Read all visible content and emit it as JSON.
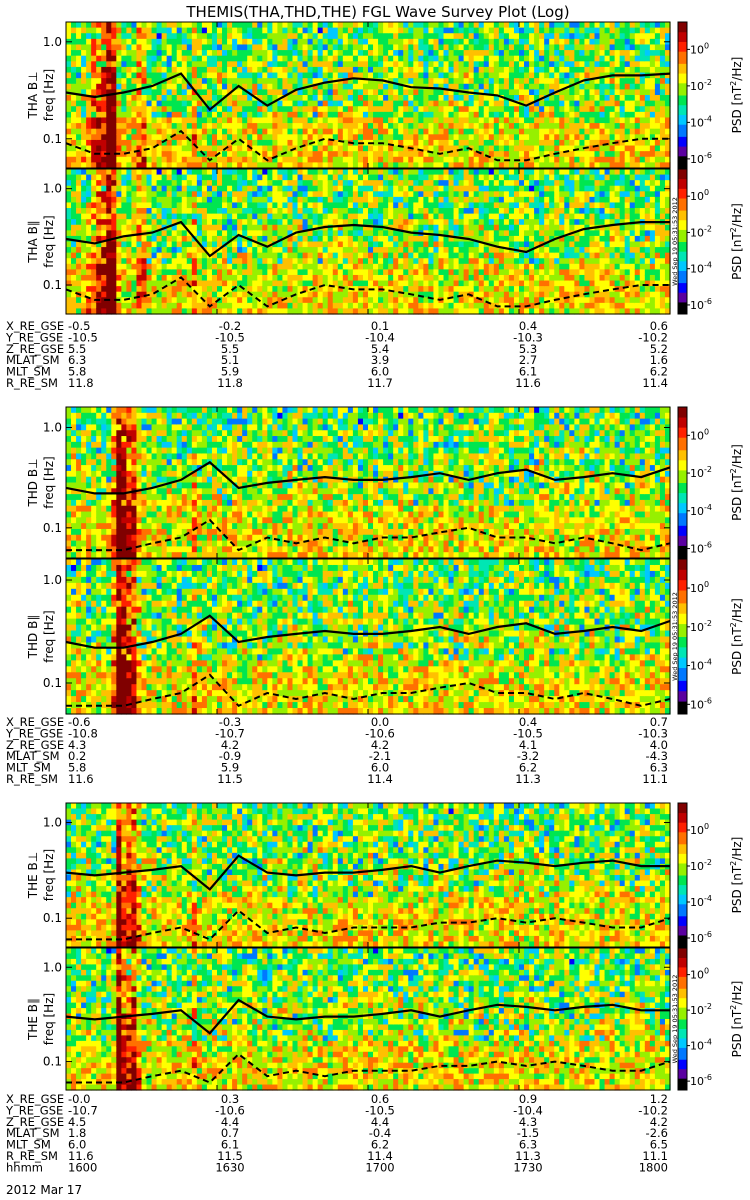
{
  "title": "THEMIS(THA,THD,THE) FGL Wave Survey Plot (Log)",
  "colorbar": {
    "label": "PSD [nT²/Hz]",
    "label_plain": "PSD [nT",
    "label_sup": "2",
    "label_tail": "/Hz]",
    "tick_base": "10",
    "tick_exponents": [
      "0",
      "-2",
      "-4",
      "-6"
    ],
    "colors": [
      "#000000",
      "#5a00a0",
      "#0000ff",
      "#0078ff",
      "#00c8ff",
      "#00e6b4",
      "#00e650",
      "#96f000",
      "#ffff00",
      "#ffc000",
      "#ff7000",
      "#ff2000",
      "#c00000",
      "#800000"
    ]
  },
  "timestamp_text": "Wed Sep 19 05:31:53 2012",
  "ylabel": "freq [Hz]",
  "yticks": [
    "1.0",
    "0.1"
  ],
  "chart_data": [
    {
      "type": "heatmap",
      "probe": "THA",
      "panel_label": "THA B⊥",
      "ylabel": "freq [Hz]",
      "yscale": "log",
      "ylim": [
        0.05,
        1.6
      ],
      "zlim_log10": [
        -6.5,
        1.5
      ],
      "bands": [
        {
          "t": 16.15,
          "w": 0.012,
          "amp": 4.5
        },
        {
          "t": 16.12,
          "w": 0.04,
          "amp": 2.0
        },
        {
          "t": 16.25,
          "w": 0.01,
          "amp": 2.3
        },
        {
          "t": 16.42,
          "w": 0.006,
          "amp": 1.7
        }
      ],
      "solid_fc": [
        0.3,
        0.27,
        0.3,
        0.35,
        0.47,
        0.2,
        0.35,
        0.22,
        0.32,
        0.38,
        0.42,
        0.4,
        0.34,
        0.33,
        0.3,
        0.28,
        0.22,
        0.3,
        0.4,
        0.45,
        0.45,
        0.47
      ],
      "dashed_fc": [
        0.09,
        0.07,
        0.07,
        0.08,
        0.12,
        0.06,
        0.1,
        0.06,
        0.08,
        0.1,
        0.09,
        0.09,
        0.08,
        0.07,
        0.08,
        0.06,
        0.06,
        0.07,
        0.08,
        0.09,
        0.1,
        0.1
      ]
    },
    {
      "type": "heatmap",
      "probe": "THA",
      "panel_label": "THA B∥",
      "ylabel": "freq [Hz]",
      "yscale": "log",
      "ylim": [
        0.05,
        1.6
      ],
      "zlim_log10": [
        -6.5,
        1.5
      ],
      "bands": [
        {
          "t": 16.15,
          "w": 0.012,
          "amp": 4.5
        },
        {
          "t": 16.12,
          "w": 0.04,
          "amp": 2.0
        },
        {
          "t": 16.25,
          "w": 0.01,
          "amp": 2.3
        },
        {
          "t": 16.42,
          "w": 0.006,
          "amp": 1.7
        }
      ],
      "solid_fc": [
        0.3,
        0.27,
        0.32,
        0.35,
        0.45,
        0.2,
        0.33,
        0.25,
        0.35,
        0.4,
        0.42,
        0.4,
        0.35,
        0.33,
        0.3,
        0.25,
        0.22,
        0.3,
        0.38,
        0.42,
        0.45,
        0.45
      ],
      "dashed_fc": [
        0.09,
        0.07,
        0.07,
        0.08,
        0.12,
        0.06,
        0.1,
        0.06,
        0.08,
        0.1,
        0.09,
        0.09,
        0.08,
        0.07,
        0.08,
        0.06,
        0.06,
        0.07,
        0.08,
        0.09,
        0.1,
        0.1
      ]
    },
    {
      "type": "heatmap",
      "probe": "THD",
      "panel_label": "THD B⊥",
      "ylabel": "freq [Hz]",
      "yscale": "log",
      "ylim": [
        0.05,
        1.6
      ],
      "zlim_log10": [
        -6.5,
        1.5
      ],
      "bands": [
        {
          "t": 16.18,
          "w": 0.02,
          "amp": 4.2
        },
        {
          "t": 16.22,
          "w": 0.02,
          "amp": 2.5
        },
        {
          "t": 16.42,
          "w": 0.006,
          "amp": 1.6
        }
      ],
      "solid_fc": [
        0.25,
        0.22,
        0.22,
        0.25,
        0.3,
        0.45,
        0.25,
        0.28,
        0.3,
        0.32,
        0.3,
        0.3,
        0.32,
        0.35,
        0.3,
        0.35,
        0.38,
        0.3,
        0.32,
        0.35,
        0.32,
        0.4
      ],
      "dashed_fc": [
        0.06,
        0.06,
        0.06,
        0.07,
        0.08,
        0.12,
        0.06,
        0.08,
        0.07,
        0.08,
        0.07,
        0.08,
        0.08,
        0.09,
        0.1,
        0.08,
        0.08,
        0.07,
        0.08,
        0.07,
        0.06,
        0.07
      ]
    },
    {
      "type": "heatmap",
      "probe": "THD",
      "panel_label": "THD B∥",
      "ylabel": "freq [Hz]",
      "yscale": "log",
      "ylim": [
        0.05,
        1.6
      ],
      "zlim_log10": [
        -6.5,
        1.5
      ],
      "bands": [
        {
          "t": 16.18,
          "w": 0.02,
          "amp": 4.2
        },
        {
          "t": 16.22,
          "w": 0.02,
          "amp": 2.5
        },
        {
          "t": 16.42,
          "w": 0.006,
          "amp": 1.6
        }
      ],
      "solid_fc": [
        0.25,
        0.22,
        0.22,
        0.25,
        0.3,
        0.45,
        0.25,
        0.28,
        0.3,
        0.32,
        0.3,
        0.3,
        0.32,
        0.35,
        0.3,
        0.35,
        0.38,
        0.3,
        0.32,
        0.35,
        0.32,
        0.4
      ],
      "dashed_fc": [
        0.06,
        0.06,
        0.06,
        0.07,
        0.08,
        0.12,
        0.06,
        0.08,
        0.07,
        0.08,
        0.07,
        0.08,
        0.08,
        0.09,
        0.1,
        0.08,
        0.08,
        0.07,
        0.08,
        0.07,
        0.06,
        0.07
      ]
    },
    {
      "type": "heatmap",
      "probe": "THE",
      "panel_label": "THE B⊥",
      "ylabel": "freq [Hz]",
      "yscale": "log",
      "ylim": [
        0.05,
        1.6
      ],
      "zlim_log10": [
        -6.5,
        1.5
      ],
      "bands": [
        {
          "t": 16.18,
          "w": 0.012,
          "amp": 4.5
        },
        {
          "t": 16.22,
          "w": 0.02,
          "amp": 2.5
        },
        {
          "t": 16.42,
          "w": 0.006,
          "amp": 1.6
        }
      ],
      "solid_fc": [
        0.3,
        0.28,
        0.3,
        0.32,
        0.35,
        0.2,
        0.45,
        0.3,
        0.28,
        0.3,
        0.3,
        0.32,
        0.35,
        0.3,
        0.35,
        0.4,
        0.38,
        0.35,
        0.38,
        0.4,
        0.35,
        0.35
      ],
      "dashed_fc": [
        0.06,
        0.06,
        0.06,
        0.07,
        0.08,
        0.06,
        0.12,
        0.07,
        0.08,
        0.07,
        0.08,
        0.08,
        0.08,
        0.09,
        0.09,
        0.1,
        0.09,
        0.1,
        0.09,
        0.08,
        0.08,
        0.1
      ]
    },
    {
      "type": "heatmap",
      "probe": "THE",
      "panel_label": "THE B∥",
      "ylabel": "freq [Hz]",
      "yscale": "log",
      "ylim": [
        0.05,
        1.6
      ],
      "zlim_log10": [
        -6.5,
        1.5
      ],
      "bands": [
        {
          "t": 16.18,
          "w": 0.012,
          "amp": 4.5
        },
        {
          "t": 16.22,
          "w": 0.02,
          "amp": 2.5
        },
        {
          "t": 16.42,
          "w": 0.006,
          "amp": 1.6
        }
      ],
      "solid_fc": [
        0.3,
        0.28,
        0.3,
        0.32,
        0.35,
        0.2,
        0.45,
        0.3,
        0.28,
        0.3,
        0.3,
        0.32,
        0.35,
        0.3,
        0.35,
        0.4,
        0.38,
        0.35,
        0.38,
        0.4,
        0.35,
        0.35
      ],
      "dashed_fc": [
        0.06,
        0.06,
        0.06,
        0.07,
        0.08,
        0.06,
        0.12,
        0.07,
        0.08,
        0.07,
        0.08,
        0.08,
        0.08,
        0.09,
        0.09,
        0.1,
        0.09,
        0.1,
        0.09,
        0.08,
        0.08,
        0.1
      ]
    }
  ],
  "ephemeris": [
    {
      "probe": "THA",
      "rows": [
        {
          "label": "X_RE_GSE",
          "values": [
            "-0.5",
            "-0.2",
            "0.1",
            "0.4",
            "0.6"
          ]
        },
        {
          "label": "Y_RE_GSE",
          "values": [
            "-10.5",
            "-10.5",
            "-10.4",
            "-10.3",
            "-10.2"
          ]
        },
        {
          "label": "Z_RE_GSE",
          "values": [
            "5.5",
            "5.5",
            "5.4",
            "5.3",
            "5.2"
          ]
        },
        {
          "label": "MLAT_SM",
          "values": [
            "6.3",
            "5.1",
            "3.9",
            "2.7",
            "1.6"
          ]
        },
        {
          "label": "MLT_SM",
          "values": [
            "5.8",
            "5.9",
            "6.0",
            "6.1",
            "6.2"
          ]
        },
        {
          "label": "R_RE_SM",
          "values": [
            "11.8",
            "11.8",
            "11.7",
            "11.6",
            "11.4"
          ]
        }
      ]
    },
    {
      "probe": "THD",
      "rows": [
        {
          "label": "X_RE_GSE",
          "values": [
            "-0.6",
            "-0.3",
            "0.0",
            "0.4",
            "0.7"
          ]
        },
        {
          "label": "Y_RE_GSE",
          "values": [
            "-10.8",
            "-10.7",
            "-10.6",
            "-10.5",
            "-10.3"
          ]
        },
        {
          "label": "Z_RE_GSE",
          "values": [
            "4.3",
            "4.2",
            "4.2",
            "4.1",
            "4.0"
          ]
        },
        {
          "label": "MLAT_SM",
          "values": [
            "0.2",
            "-0.9",
            "-2.1",
            "-3.2",
            "-4.3"
          ]
        },
        {
          "label": "MLT_SM",
          "values": [
            "5.8",
            "5.9",
            "6.0",
            "6.2",
            "6.3"
          ]
        },
        {
          "label": "R_RE_SM",
          "values": [
            "11.6",
            "11.5",
            "11.4",
            "11.3",
            "11.1"
          ]
        }
      ]
    },
    {
      "probe": "THE",
      "rows": [
        {
          "label": "X_RE_GSE",
          "values": [
            "-0.0",
            "0.3",
            "0.6",
            "0.9",
            "1.2"
          ]
        },
        {
          "label": "Y_RE_GSE",
          "values": [
            "-10.7",
            "-10.6",
            "-10.5",
            "-10.4",
            "-10.2"
          ]
        },
        {
          "label": "Z_RE_GSE",
          "values": [
            "4.5",
            "4.4",
            "4.4",
            "4.3",
            "4.2"
          ]
        },
        {
          "label": "MLAT_SM",
          "values": [
            "1.8",
            "0.7",
            "-0.4",
            "-1.5",
            "-2.6"
          ]
        },
        {
          "label": "MLT_SM",
          "values": [
            "6.0",
            "6.1",
            "6.2",
            "6.3",
            "6.5"
          ]
        },
        {
          "label": "R_RE_SM",
          "values": [
            "11.6",
            "11.5",
            "11.4",
            "11.3",
            "11.1"
          ]
        },
        {
          "label": "hhmm",
          "values": [
            "1600",
            "1630",
            "1700",
            "1730",
            "1800"
          ]
        }
      ]
    }
  ],
  "date_label": "2012 Mar 17",
  "time_axis": {
    "start_hours": 16.0,
    "end_hours": 18.0,
    "tick_hours": [
      16.0,
      16.5,
      17.0,
      17.5,
      18.0
    ]
  }
}
